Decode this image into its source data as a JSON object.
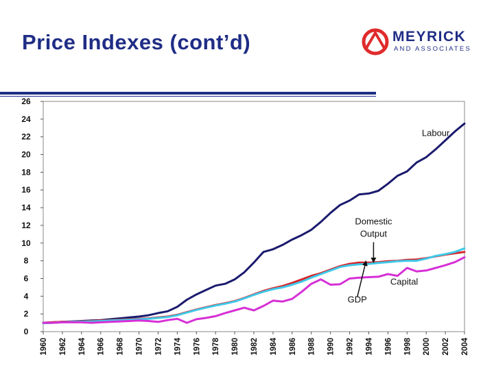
{
  "slide": {
    "title": "Price Indexes (cont’d)"
  },
  "logo": {
    "name": "MEYRICK",
    "sub": "AND ASSOCIATES"
  },
  "colors": {
    "brand": "#1f2d86",
    "rule": "#1f2d86"
  },
  "chart_data": {
    "type": "line",
    "title": "",
    "xlabel": "",
    "ylabel": "",
    "ylim": [
      0,
      26
    ],
    "yticks": [
      0,
      2,
      4,
      6,
      8,
      10,
      12,
      14,
      16,
      18,
      20,
      22,
      24,
      26
    ],
    "xlim": [
      1960,
      2004
    ],
    "xticks": [
      1960,
      1962,
      1964,
      1966,
      1968,
      1970,
      1972,
      1974,
      1976,
      1978,
      1980,
      1982,
      1984,
      1986,
      1988,
      1990,
      1992,
      1994,
      1996,
      1998,
      2000,
      2002,
      2004
    ],
    "grid": false,
    "legend": "none",
    "x": [
      1960,
      1961,
      1962,
      1963,
      1964,
      1965,
      1966,
      1967,
      1968,
      1969,
      1970,
      1971,
      1972,
      1973,
      1974,
      1975,
      1976,
      1977,
      1978,
      1979,
      1980,
      1981,
      1982,
      1983,
      1984,
      1985,
      1986,
      1987,
      1988,
      1989,
      1990,
      1991,
      1992,
      1993,
      1994,
      1995,
      1996,
      1997,
      1998,
      1999,
      2000,
      2001,
      2002,
      2003,
      2004
    ],
    "series": [
      {
        "color": "#1a1a6e",
        "values": [
          1.0,
          1.05,
          1.1,
          1.15,
          1.2,
          1.25,
          1.3,
          1.4,
          1.5,
          1.6,
          1.7,
          1.85,
          2.1,
          2.3,
          2.8,
          3.6,
          4.2,
          4.7,
          5.2,
          5.4,
          5.9,
          6.7,
          7.8,
          9.0,
          9.3,
          9.8,
          10.4,
          10.9,
          11.5,
          12.4,
          13.4,
          14.3,
          14.8,
          15.5,
          15.6,
          15.9,
          16.7,
          17.6,
          18.1,
          19.1,
          19.7,
          20.6,
          21.6,
          22.6,
          23.5
        ]
      },
      {
        "color": "#d8232a",
        "values": [
          1.0,
          1.05,
          1.1,
          1.12,
          1.15,
          1.2,
          1.25,
          1.3,
          1.35,
          1.4,
          1.45,
          1.5,
          1.6,
          1.7,
          1.9,
          2.2,
          2.5,
          2.75,
          3.0,
          3.2,
          3.45,
          3.8,
          4.2,
          4.6,
          4.9,
          5.15,
          5.5,
          5.9,
          6.3,
          6.6,
          7.0,
          7.4,
          7.65,
          7.8,
          7.8,
          7.85,
          7.95,
          8.0,
          8.1,
          8.15,
          8.3,
          8.5,
          8.7,
          8.85,
          9.0
        ]
      },
      {
        "color": "#3ec9e8",
        "values": [
          0.95,
          1.0,
          1.05,
          1.1,
          1.12,
          1.15,
          1.2,
          1.25,
          1.3,
          1.35,
          1.4,
          1.45,
          1.55,
          1.65,
          1.85,
          2.15,
          2.45,
          2.7,
          2.95,
          3.15,
          3.4,
          3.75,
          4.15,
          4.5,
          4.8,
          5.0,
          5.3,
          5.65,
          6.1,
          6.5,
          6.9,
          7.3,
          7.5,
          7.6,
          7.65,
          7.75,
          7.85,
          7.95,
          8.0,
          8.0,
          8.25,
          8.55,
          8.75,
          9.0,
          9.4
        ]
      },
      {
        "color": "#d62fd6",
        "values": [
          1.0,
          1.0,
          1.05,
          1.05,
          1.05,
          1.0,
          1.05,
          1.1,
          1.15,
          1.2,
          1.25,
          1.2,
          1.1,
          1.3,
          1.45,
          1.0,
          1.4,
          1.55,
          1.75,
          2.1,
          2.4,
          2.7,
          2.4,
          2.9,
          3.5,
          3.4,
          3.7,
          4.5,
          5.4,
          5.9,
          5.3,
          5.35,
          6.0,
          6.1,
          6.15,
          6.2,
          6.5,
          6.3,
          7.2,
          6.8,
          6.9,
          7.2,
          7.5,
          7.85,
          8.4
        ]
      }
    ],
    "annotations": [
      {
        "text": "Labour",
        "x": 2001,
        "y": 22.1
      },
      {
        "text": "Domestic",
        "x": 1994.5,
        "y": 12.1
      },
      {
        "text": "Output",
        "x": 1994.5,
        "y": 10.7
      },
      {
        "text": "Capital",
        "x": 1997.7,
        "y": 5.3
      },
      {
        "text": "GDP",
        "x": 1992.8,
        "y": 3.3
      }
    ]
  }
}
